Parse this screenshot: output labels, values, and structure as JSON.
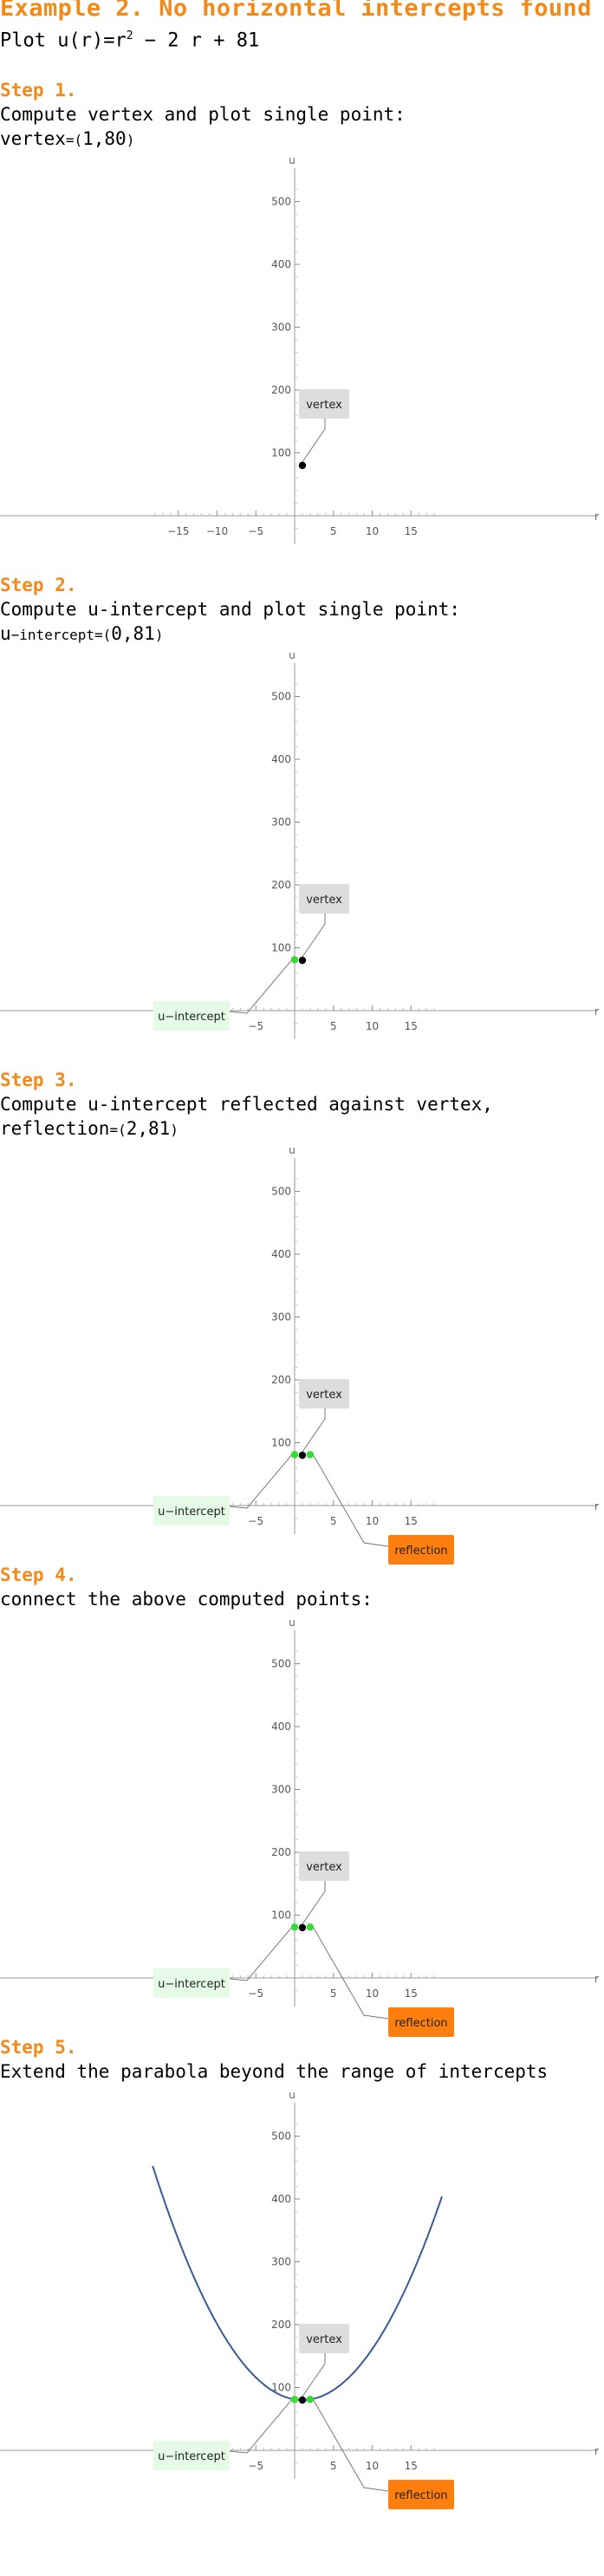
{
  "title": "Example 2. No horizontal intercepts found",
  "subtitle": {
    "prefix": "Plot ",
    "func": "u(r)=r",
    "exp": "2",
    "rest": " − 2 r + 81"
  },
  "axes": {
    "x_label": "r",
    "y_label": "u",
    "x_ticks": [
      -15,
      -10,
      -5,
      5,
      10,
      15
    ],
    "y_ticks": [
      100,
      200,
      300,
      400,
      500
    ]
  },
  "labels": {
    "vertex": "vertex",
    "intercept": "u−intercept",
    "reflection": "reflection"
  },
  "colors": {
    "accent": "#f28a1a",
    "curve": "#3a5a96",
    "intercept_point": "#33dd33",
    "vertex_point": "#000000",
    "vertex_box": "#dddddd",
    "intercept_box": "#e6fbe6",
    "reflection_box": "#ff7f0e"
  },
  "steps": [
    {
      "label": "Step 1.",
      "line1": "Compute vertex and plot single point:",
      "line2_prefix": "vertex",
      "line2_eq": "=(",
      "line2_value": "1,80",
      "line2_close": ")"
    },
    {
      "label": "Step 2.",
      "line1": "Compute u-intercept and plot single point:",
      "line2_prefix": "u",
      "line2_eq": "−intercept=(",
      "line2_value": "0,81",
      "line2_close": ")"
    },
    {
      "label": "Step 3.",
      "line1": "Compute u-intercept reflected against vertex,",
      "line2_prefix": "reflection",
      "line2_eq": "=(",
      "line2_value": "2,81",
      "line2_close": ")"
    },
    {
      "label": "Step 4.",
      "line1": "connect the above computed points:"
    },
    {
      "label": "Step 5.",
      "line1": "Extend the parabola beyond the range of intercepts"
    }
  ],
  "chart_data": [
    {
      "type": "scatter",
      "x_range": [
        -19,
        19
      ],
      "y_range": [
        -40,
        530
      ],
      "points": [
        {
          "name": "vertex",
          "x": 1,
          "y": 80
        }
      ]
    },
    {
      "type": "scatter",
      "x_range": [
        -19,
        19
      ],
      "y_range": [
        -40,
        530
      ],
      "points": [
        {
          "name": "vertex",
          "x": 1,
          "y": 80
        },
        {
          "name": "u−intercept",
          "x": 0,
          "y": 81
        }
      ]
    },
    {
      "type": "scatter",
      "x_range": [
        -19,
        19
      ],
      "y_range": [
        -40,
        530
      ],
      "points": [
        {
          "name": "vertex",
          "x": 1,
          "y": 80
        },
        {
          "name": "u−intercept",
          "x": 0,
          "y": 81
        },
        {
          "name": "reflection",
          "x": 2,
          "y": 81
        }
      ]
    },
    {
      "type": "scatter",
      "x_range": [
        -19,
        19
      ],
      "y_range": [
        -40,
        530
      ],
      "points": [
        {
          "name": "vertex",
          "x": 1,
          "y": 80
        },
        {
          "name": "u−intercept",
          "x": 0,
          "y": 81
        },
        {
          "name": "reflection",
          "x": 2,
          "y": 81
        }
      ]
    },
    {
      "type": "line",
      "x_range": [
        -19,
        19
      ],
      "y_range": [
        -40,
        530
      ],
      "function": "r^2 - 2r + 81",
      "curve_domain": [
        -18.3,
        19
      ],
      "points": [
        {
          "name": "vertex",
          "x": 1,
          "y": 80
        },
        {
          "name": "u−intercept",
          "x": 0,
          "y": 81
        },
        {
          "name": "reflection",
          "x": 2,
          "y": 81
        }
      ]
    }
  ]
}
